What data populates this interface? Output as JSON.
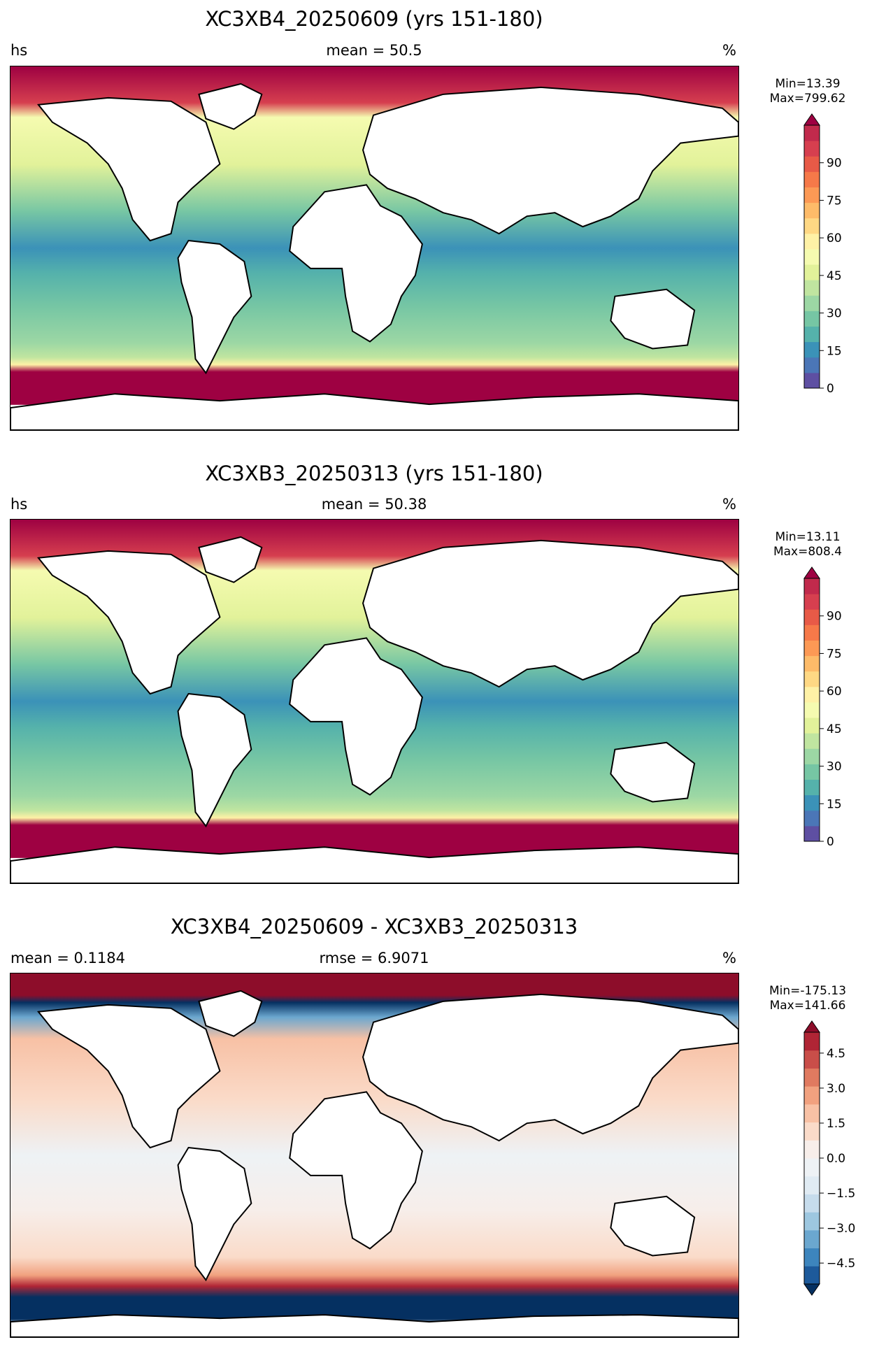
{
  "panels": [
    {
      "title": "XC3XB4_20250609 (yrs 151-180)",
      "left_label": "hs",
      "center_label": "mean = 50.5",
      "right_label": "%",
      "min_text": "Min=13.39",
      "max_text": "Max=799.62",
      "colorbar": {
        "ticks": [
          "0",
          "15",
          "30",
          "45",
          "60",
          "75",
          "90"
        ],
        "colors": [
          "#5e4fa2",
          "#4b76b7",
          "#3b92b8",
          "#55b2ab",
          "#76c6a4",
          "#9cd7a4",
          "#c0e5a0",
          "#e2f29a",
          "#f5fbb0",
          "#fef1a6",
          "#fed884",
          "#fdbb69",
          "#fc9955",
          "#f67949",
          "#e85a47",
          "#d63f4f",
          "#c12a4c",
          "#9e0142"
        ],
        "extend": "max"
      }
    },
    {
      "title": "XC3XB3_20250313 (yrs 151-180)",
      "left_label": "hs",
      "center_label": "mean = 50.38",
      "right_label": "%",
      "min_text": "Min=13.11",
      "max_text": "Max=808.4",
      "colorbar": {
        "ticks": [
          "0",
          "15",
          "30",
          "45",
          "60",
          "75",
          "90"
        ],
        "colors": [
          "#5e4fa2",
          "#4b76b7",
          "#3b92b8",
          "#55b2ab",
          "#76c6a4",
          "#9cd7a4",
          "#c0e5a0",
          "#e2f29a",
          "#f5fbb0",
          "#fef1a6",
          "#fed884",
          "#fdbb69",
          "#fc9955",
          "#f67949",
          "#e85a47",
          "#d63f4f",
          "#c12a4c",
          "#9e0142"
        ],
        "extend": "max"
      }
    },
    {
      "title": "XC3XB4_20250609 - XC3XB3_20250313",
      "left_label": "mean = 0.1184",
      "center_label": "rmse = 6.9071",
      "right_label": "%",
      "min_text": "Min=-175.13",
      "max_text": "Max=141.66",
      "colorbar": {
        "ticks": [
          "−4.5",
          "−3.0",
          "−1.5",
          "0.0",
          "1.5",
          "3.0",
          "4.5"
        ],
        "colors": [
          "#053061",
          "#1d5a9b",
          "#3d85bd",
          "#6ba7cf",
          "#9dc7e0",
          "#c6dcec",
          "#e0ebf3",
          "#eef2f5",
          "#f7eeea",
          "#fadbc9",
          "#f8c1a5",
          "#f1a17f",
          "#e07a60",
          "#c94e49",
          "#b02535",
          "#8d0d2a"
        ],
        "extend": "both"
      }
    }
  ],
  "colors": {
    "land": "#ffffff",
    "coast": "#000000",
    "ice_red": "#9e0142",
    "ocean_mid": "#8fd3a4",
    "diff_pos": "#f9c6ad",
    "diff_neg": "#0a3a6e"
  }
}
